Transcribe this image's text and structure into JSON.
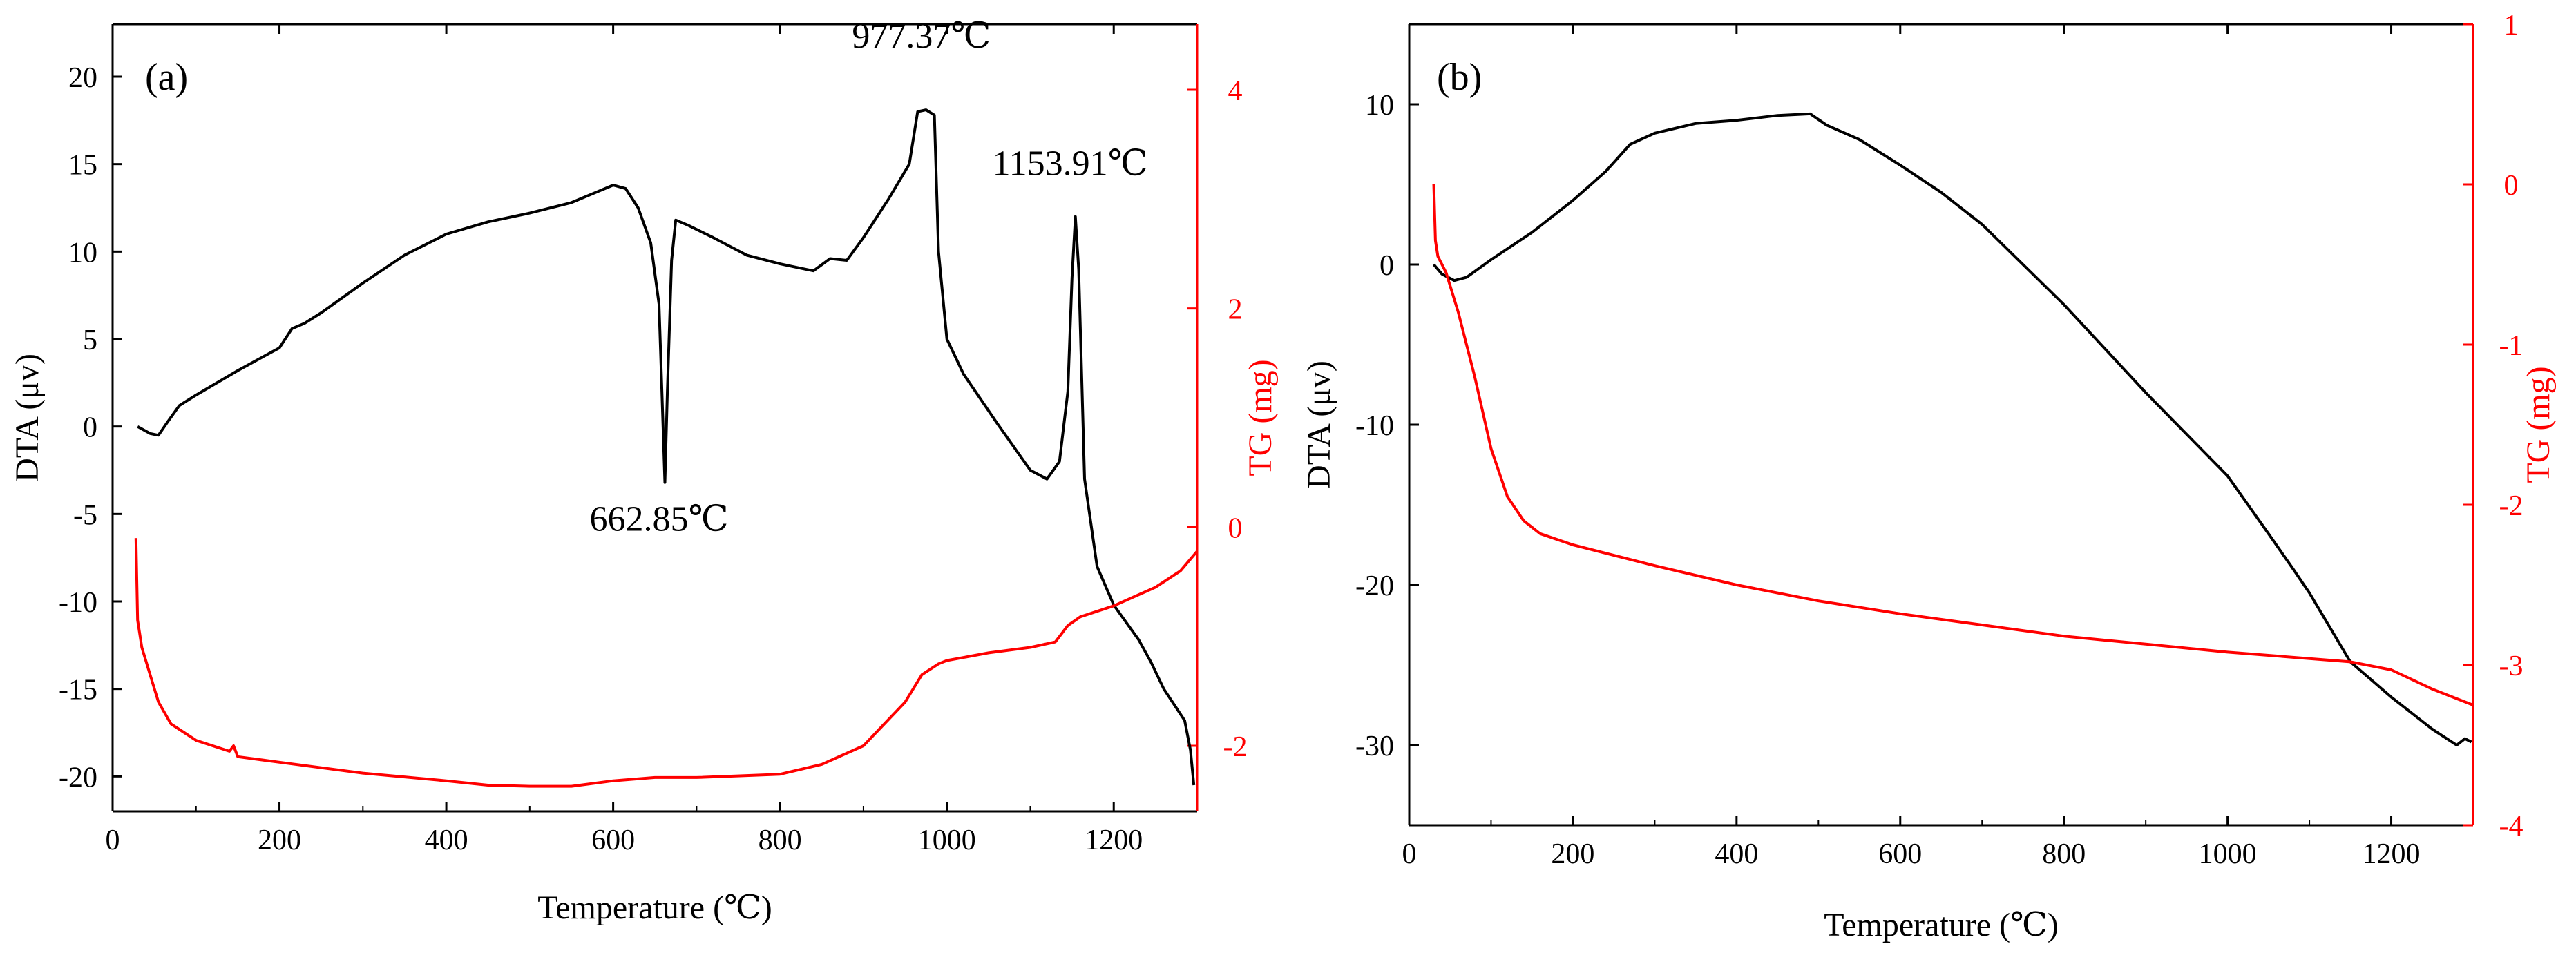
{
  "colors": {
    "dta": "#000000",
    "tg": "#ff0000"
  },
  "chart_data": [
    {
      "panel": "(a)",
      "type": "line",
      "xlabel": "Temperature (℃)",
      "ylabel_left": "DTA (μv)",
      "ylabel_right": "TG (mg)",
      "xlim": [
        0,
        1300
      ],
      "ylim_left": [
        -22,
        23
      ],
      "ylim_right": [
        -2.6,
        4.6
      ],
      "xticks": [
        0,
        200,
        400,
        600,
        800,
        1000,
        1200
      ],
      "yticks_left": [
        -20,
        -15,
        -10,
        -5,
        0,
        5,
        10,
        15,
        20
      ],
      "yticks_right": [
        -2,
        0,
        2,
        4
      ],
      "series": [
        {
          "name": "DTA",
          "axis": "left",
          "color": "#000000",
          "x": [
            30,
            45,
            55,
            65,
            80,
            100,
            150,
            200,
            215,
            230,
            250,
            300,
            350,
            400,
            450,
            500,
            550,
            580,
            600,
            615,
            630,
            645,
            655,
            662,
            665,
            670,
            675,
            690,
            720,
            760,
            800,
            830,
            840,
            860,
            880,
            900,
            930,
            955,
            965,
            975,
            985,
            990,
            1000,
            1020,
            1060,
            1100,
            1120,
            1135,
            1145,
            1150,
            1154,
            1158,
            1165,
            1180,
            1200,
            1230,
            1245,
            1260,
            1285,
            1292,
            1296
          ],
          "values": [
            0,
            -0.4,
            -0.5,
            0.2,
            1.2,
            1.8,
            3.2,
            4.5,
            5.6,
            5.9,
            6.5,
            8.2,
            9.8,
            11.0,
            11.7,
            12.2,
            12.8,
            13.4,
            13.8,
            13.6,
            12.5,
            10.5,
            7.0,
            -3.2,
            2.0,
            9.5,
            11.8,
            11.5,
            10.8,
            9.8,
            9.3,
            9.0,
            8.9,
            9.6,
            9.5,
            10.8,
            13.0,
            15.0,
            18.0,
            18.1,
            17.8,
            10.0,
            5.0,
            3.0,
            0.2,
            -2.5,
            -3.0,
            -2.0,
            2.0,
            8.5,
            12.0,
            9.0,
            -3.0,
            -8.0,
            -10.2,
            -12.2,
            -13.5,
            -15.0,
            -16.8,
            -18.5,
            -20.5
          ]
        },
        {
          "name": "TG",
          "axis": "right",
          "color": "#ff0000",
          "x": [
            28,
            30,
            35,
            45,
            55,
            70,
            100,
            140,
            145,
            150,
            200,
            300,
            400,
            450,
            500,
            550,
            600,
            650,
            700,
            800,
            850,
            900,
            950,
            970,
            990,
            1000,
            1050,
            1100,
            1130,
            1145,
            1160,
            1200,
            1250,
            1280,
            1300
          ],
          "values": [
            -0.1,
            -0.85,
            -1.1,
            -1.35,
            -1.6,
            -1.8,
            -1.95,
            -2.05,
            -2.0,
            -2.1,
            -2.15,
            -2.25,
            -2.32,
            -2.36,
            -2.37,
            -2.37,
            -2.32,
            -2.29,
            -2.29,
            -2.26,
            -2.17,
            -2.0,
            -1.6,
            -1.35,
            -1.25,
            -1.22,
            -1.15,
            -1.1,
            -1.05,
            -0.9,
            -0.82,
            -0.72,
            -0.55,
            -0.4,
            -0.22
          ]
        }
      ],
      "annotations": [
        {
          "text": "662.85℃",
          "x": 662.85,
          "y": -3.2
        },
        {
          "text": "977.37℃",
          "x": 977.37,
          "y": 18.1
        },
        {
          "text": "1153.91℃",
          "x": 1153.91,
          "y": 12.0
        }
      ]
    },
    {
      "panel": "(b)",
      "type": "line",
      "xlabel": "Temperature (℃)",
      "ylabel_left": "DTA (μv)",
      "ylabel_right": "TG (mg)",
      "xlim": [
        0,
        1300
      ],
      "ylim_left": [
        -35,
        15
      ],
      "ylim_right": [
        -4,
        1
      ],
      "xticks": [
        0,
        200,
        400,
        600,
        800,
        1000,
        1200
      ],
      "yticks_left": [
        -30,
        -20,
        -10,
        0,
        10
      ],
      "yticks_right": [
        -4,
        -3,
        -2,
        -1,
        0,
        1
      ],
      "series": [
        {
          "name": "DTA",
          "axis": "left",
          "color": "#000000",
          "x": [
            30,
            40,
            55,
            70,
            100,
            150,
            200,
            240,
            270,
            300,
            350,
            400,
            450,
            490,
            510,
            550,
            600,
            650,
            700,
            800,
            900,
            1000,
            1050,
            1080,
            1100,
            1150,
            1200,
            1250,
            1280,
            1290,
            1298
          ],
          "values": [
            0,
            -0.6,
            -1.0,
            -0.8,
            0.3,
            2.0,
            4.0,
            5.8,
            7.5,
            8.2,
            8.8,
            9.0,
            9.3,
            9.4,
            8.7,
            7.8,
            6.2,
            4.5,
            2.5,
            -2.5,
            -8.0,
            -13.2,
            -16.8,
            -19.0,
            -20.5,
            -24.8,
            -27.0,
            -29.0,
            -30.0,
            -29.6,
            -29.8
          ]
        },
        {
          "name": "TG",
          "axis": "right",
          "color": "#ff0000",
          "x": [
            30,
            32,
            35,
            45,
            60,
            80,
            100,
            120,
            140,
            160,
            200,
            300,
            400,
            500,
            600,
            700,
            800,
            900,
            1000,
            1100,
            1150,
            1200,
            1250,
            1300
          ],
          "values": [
            0.0,
            -0.35,
            -0.45,
            -0.55,
            -0.8,
            -1.2,
            -1.65,
            -1.95,
            -2.1,
            -2.18,
            -2.25,
            -2.38,
            -2.5,
            -2.6,
            -2.68,
            -2.75,
            -2.82,
            -2.87,
            -2.92,
            -2.96,
            -2.98,
            -3.03,
            -3.15,
            -3.25
          ]
        }
      ],
      "annotations": []
    }
  ]
}
